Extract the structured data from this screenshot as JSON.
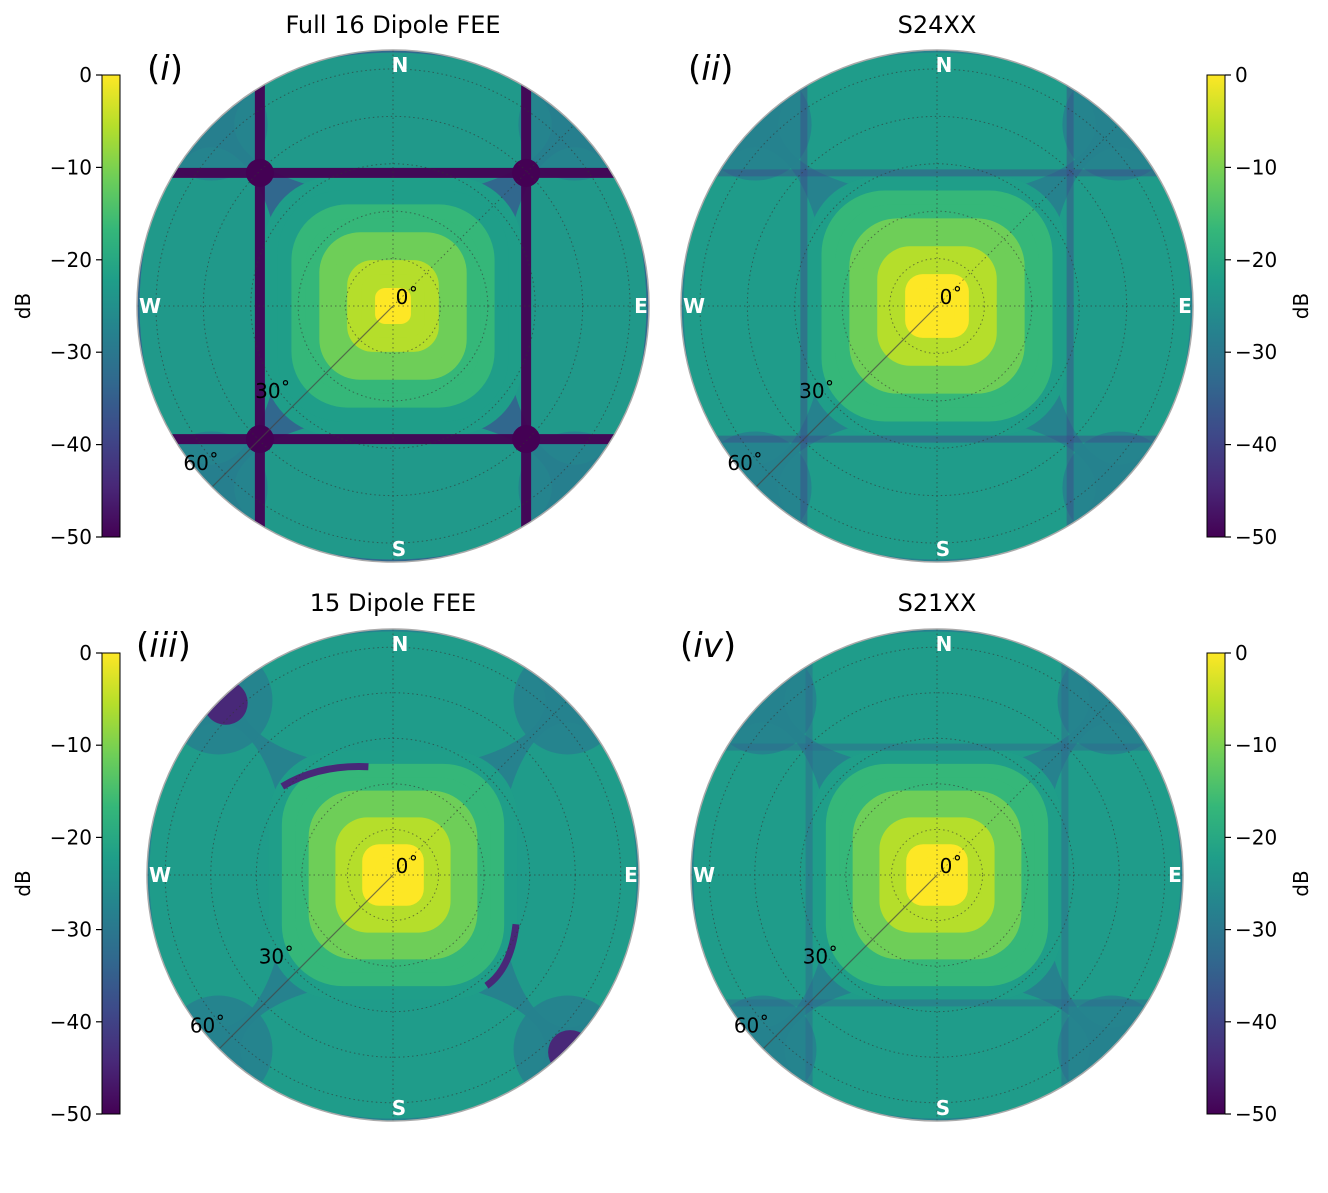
{
  "colormap": [
    "#440154",
    "#482878",
    "#3e4989",
    "#31688e",
    "#26828e",
    "#1f9e89",
    "#35b779",
    "#6ece58",
    "#b5de2b",
    "#fde725"
  ],
  "compass": {
    "north": "N",
    "south": "S",
    "east": "E",
    "west": "W"
  },
  "chart_data": [
    {
      "type": "heatmap",
      "panel_label": "(i)",
      "title": "Full 16 Dipole FEE",
      "projection": "polar",
      "colorbar": {
        "label": "dB",
        "range": [
          -50,
          0
        ],
        "ticks": [
          "0",
          "−10",
          "−20",
          "−30",
          "−40",
          "−50"
        ],
        "side": "left"
      },
      "radial_labels": [
        "0˚",
        "30˚",
        "60˚"
      ],
      "style": "full",
      "peak_db": 0,
      "edge_db": -32,
      "null_db": -50
    },
    {
      "type": "heatmap",
      "panel_label": "(ii)",
      "title": "S24XX",
      "projection": "polar",
      "colorbar": {
        "label": "dB",
        "range": [
          -50,
          0
        ],
        "ticks": [
          "0",
          "−10",
          "−20",
          "−30",
          "−40",
          "−50"
        ],
        "side": "right"
      },
      "radial_labels": [
        "0˚",
        "30˚",
        "60˚"
      ],
      "style": "measured",
      "peak_db": 0,
      "edge_db": -30,
      "null_db": -38
    },
    {
      "type": "heatmap",
      "panel_label": "(iii)",
      "title": "15 Dipole FEE",
      "projection": "polar",
      "colorbar": {
        "label": "dB",
        "range": [
          -50,
          0
        ],
        "ticks": [
          "0",
          "−10",
          "−20",
          "−30",
          "−40",
          "−50"
        ],
        "side": "left"
      },
      "radial_labels": [
        "0˚",
        "30˚",
        "60˚"
      ],
      "style": "partial",
      "peak_db": 0,
      "edge_db": -30,
      "null_db": -46
    },
    {
      "type": "heatmap",
      "panel_label": "(iv)",
      "title": "S21XX",
      "projection": "polar",
      "colorbar": {
        "label": "dB",
        "range": [
          -50,
          0
        ],
        "ticks": [
          "0",
          "−10",
          "−20",
          "−30",
          "−40",
          "−50"
        ],
        "side": "right"
      },
      "radial_labels": [
        "0˚",
        "30˚",
        "60˚"
      ],
      "style": "measured2",
      "peak_db": 0,
      "edge_db": -30,
      "null_db": -36
    }
  ]
}
